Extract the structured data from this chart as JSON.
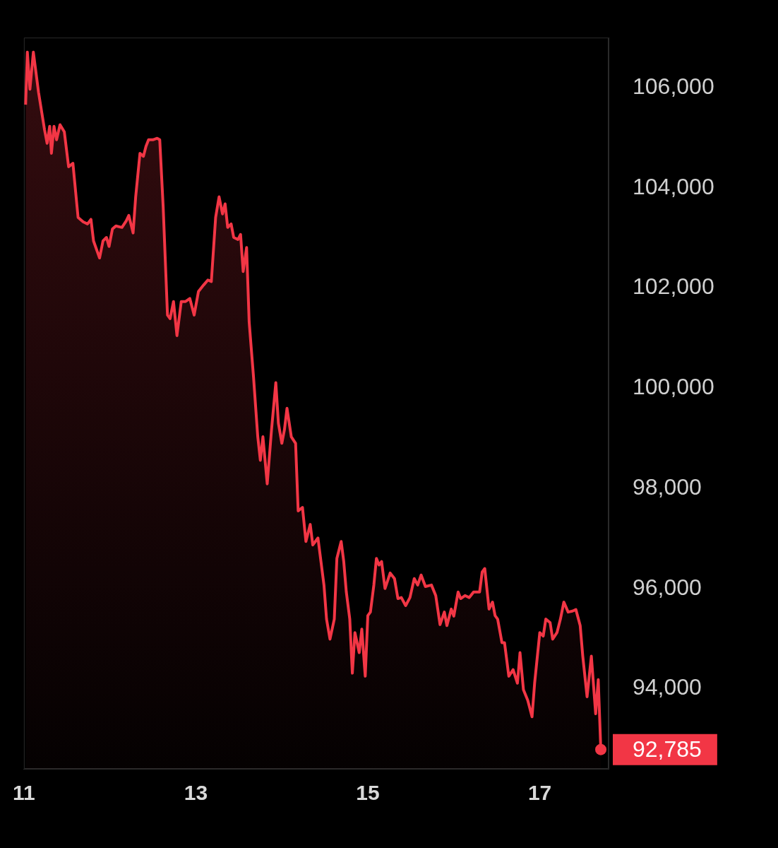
{
  "chart_data": {
    "type": "area",
    "x": [
      11.02,
      11.04,
      11.07,
      11.11,
      11.17,
      11.24,
      11.27,
      11.3,
      11.32,
      11.35,
      11.38,
      11.42,
      11.47,
      11.52,
      11.57,
      11.63,
      11.69,
      11.74,
      11.78,
      11.81,
      11.88,
      11.92,
      11.96,
      11.99,
      12.03,
      12.07,
      12.14,
      12.19,
      12.22,
      12.27,
      12.3,
      12.35,
      12.39,
      12.42,
      12.45,
      12.5,
      12.55,
      12.58,
      12.62,
      12.67,
      12.7,
      12.74,
      12.78,
      12.83,
      12.88,
      12.93,
      12.98,
      13.03,
      13.09,
      13.14,
      13.18,
      13.23,
      13.27,
      13.31,
      13.34,
      13.37,
      13.41,
      13.44,
      13.49,
      13.52,
      13.55,
      13.59,
      13.62,
      13.67,
      13.72,
      13.75,
      13.78,
      13.83,
      13.88,
      13.93,
      13.96,
      14.0,
      14.03,
      14.06,
      14.11,
      14.16,
      14.19,
      14.24,
      14.28,
      14.33,
      14.36,
      14.39,
      14.42,
      14.49,
      14.52,
      14.56,
      14.61,
      14.64,
      14.69,
      14.72,
      14.75,
      14.79,
      14.82,
      14.85,
      14.9,
      14.93,
      14.97,
      15.0,
      15.03,
      15.07,
      15.1,
      15.13,
      15.16,
      15.2,
      15.26,
      15.31,
      15.35,
      15.39,
      15.44,
      15.49,
      15.54,
      15.58,
      15.62,
      15.67,
      15.74,
      15.79,
      15.84,
      15.89,
      15.92,
      15.97,
      16.0,
      16.05,
      16.08,
      16.13,
      16.18,
      16.23,
      16.3,
      16.33,
      16.36,
      16.41,
      16.45,
      16.48,
      16.51,
      16.56,
      16.59,
      16.64,
      16.69,
      16.74,
      16.77,
      16.81,
      16.86,
      16.91,
      16.94,
      17.0,
      17.04,
      17.07,
      17.12,
      17.15,
      17.2,
      17.24,
      17.28,
      17.33,
      17.38,
      17.42,
      17.47,
      17.5,
      17.55,
      17.6,
      17.65,
      17.68,
      17.71
    ],
    "series": [
      {
        "color": "#f23645",
        "values": [
          105660,
          106710,
          105970,
          106710,
          105910,
          105160,
          104890,
          105230,
          104690,
          105230,
          104960,
          105260,
          105120,
          104420,
          104490,
          103410,
          103320,
          103280,
          103370,
          102940,
          102600,
          102940,
          103010,
          102830,
          103180,
          103240,
          103210,
          103340,
          103450,
          103100,
          103820,
          104690,
          104630,
          104830,
          104960,
          104960,
          104990,
          104960,
          103610,
          101460,
          101390,
          101730,
          101050,
          101730,
          101730,
          101790,
          101460,
          101930,
          102060,
          102160,
          102130,
          103410,
          103820,
          103480,
          103680,
          103210,
          103280,
          103010,
          102970,
          103070,
          102330,
          102810,
          101320,
          100240,
          99030,
          98560,
          99030,
          98090,
          99170,
          100110,
          99300,
          98900,
          99170,
          99600,
          99030,
          98900,
          97550,
          97620,
          96940,
          97280,
          96870,
          96940,
          97010,
          96070,
          95390,
          94990,
          95390,
          96600,
          96940,
          96540,
          95930,
          95390,
          94310,
          95120,
          94720,
          95190,
          94250,
          95460,
          95530,
          96070,
          96600,
          96470,
          96540,
          96000,
          96310,
          96200,
          95800,
          95820,
          95660,
          95820,
          96200,
          96070,
          96270,
          96040,
          96070,
          95860,
          95280,
          95530,
          95260,
          95590,
          95450,
          95930,
          95800,
          95860,
          95820,
          95930,
          95930,
          96330,
          96400,
          95590,
          95730,
          95460,
          95390,
          94920,
          94920,
          94250,
          94380,
          94110,
          94720,
          93980,
          93770,
          93440,
          94110,
          95120,
          95050,
          95390,
          95320,
          94990,
          95120,
          95390,
          95730,
          95530,
          95550,
          95580,
          95260,
          94650,
          93840,
          94650,
          93500,
          94180,
          92785
        ]
      }
    ],
    "xlim": [
      11,
      17.8
    ],
    "xticks": [
      11,
      13,
      15,
      17
    ],
    "ylim": [
      92400,
      107000
    ],
    "yticks": [
      {
        "value": 94000,
        "label": "94,000"
      },
      {
        "value": 96000,
        "label": "96,000"
      },
      {
        "value": 98000,
        "label": "98,000"
      },
      {
        "value": 100000,
        "label": "100,000"
      },
      {
        "value": 102000,
        "label": "102,000"
      },
      {
        "value": 104000,
        "label": "104,000"
      },
      {
        "value": 106000,
        "label": "106,000"
      }
    ],
    "annotations": [
      {
        "text": "92,785",
        "x": 17.71,
        "y": 92785
      }
    ],
    "grid": false,
    "legend": false,
    "marker": "none",
    "line_style": "solid"
  }
}
